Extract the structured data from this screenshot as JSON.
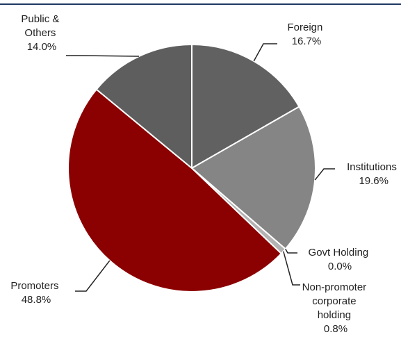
{
  "chart_data": {
    "type": "pie",
    "title": "",
    "slices": [
      {
        "label": "Foreign",
        "value": 16.7,
        "value_text": "16.7%",
        "color": "#616161"
      },
      {
        "label": "Institutions",
        "value": 19.6,
        "value_text": "19.6%",
        "color": "#858585"
      },
      {
        "label": "Govt Holding",
        "value": 0.0,
        "value_text": "0.0%",
        "color": "#a6a6a6"
      },
      {
        "label": "Non-promoter corporate holding",
        "value": 0.8,
        "value_text": "0.8%",
        "color": "#b3b3b3"
      },
      {
        "label": "Promoters",
        "value": 48.8,
        "value_text": "48.8%",
        "color": "#8b0000"
      },
      {
        "label": "Public & Others",
        "value": 14.0,
        "value_text": "14.0%",
        "color": "#5e5e5e"
      }
    ],
    "start_angle_deg": 0,
    "direction": "clockwise",
    "slice_border_color": "#ffffff",
    "leader_line_color": "#222222",
    "accent_line_color": "#1f3864"
  }
}
